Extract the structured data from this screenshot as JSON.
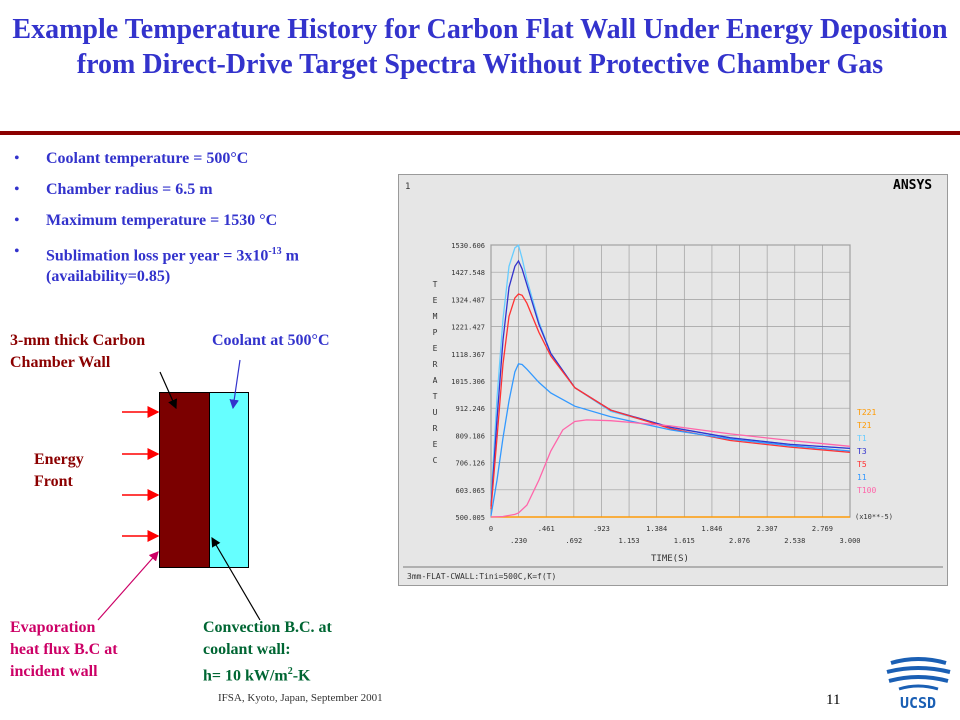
{
  "slide": {
    "title": "Example Temperature History for Carbon Flat Wall Under Energy Deposition from Direct-Drive  Target Spectra Without Protective Chamber Gas",
    "footer": "IFSA, Kyoto, Japan, September 2001",
    "page_number": "11",
    "logo_text": "UCSD",
    "colors": {
      "title": "#3333cc",
      "rule": "#8b0000",
      "wall": "#7b0000",
      "coolant": "#66ffff",
      "arrow": "#ff0000"
    }
  },
  "bullets": [
    {
      "text": "Coolant temperature = 500°C"
    },
    {
      "text": "Chamber radius = 6.5 m"
    },
    {
      "text": "Maximum temperature = 1530 °C"
    },
    {
      "pre": "Sublimation loss per year = 3x10",
      "sup": "-13",
      "post": " m",
      "line2": "(availability=0.85)"
    }
  ],
  "diagram": {
    "wall_label_1": "3-mm thick Carbon",
    "wall_label_2": "Chamber Wall",
    "coolant_label": "Coolant  at 500°C",
    "energy_label_1": "Energy",
    "energy_label_2": "Front",
    "evap_1": "Evaporation",
    "evap_2": "heat flux B.C at",
    "evap_3": "incident wall",
    "conv_1": "Convection B.C. at",
    "conv_2": "coolant wall:",
    "conv_3_pre": "h= 10 kW/m",
    "conv_3_sup": "2",
    "conv_3_post": "-K"
  },
  "chart_data": {
    "type": "line",
    "window_number": "1",
    "brand": "ANSYS",
    "ylabel": "TEMPERATURE C",
    "xlabel": "TIME(S)",
    "x_exponent": "(x10**-5)",
    "caption": "3mm-FLAT-CWALL:Tini=500C,K=f(T)",
    "xlim": [
      0,
      3.0
    ],
    "ylim": [
      500.005,
      1530.606
    ],
    "grid": true,
    "y_ticks": [
      "500.005",
      "603.065",
      "706.126",
      "809.186",
      "912.246",
      "1015.306",
      "1118.367",
      "1221.427",
      "1324.487",
      "1427.548",
      "1530.606"
    ],
    "x_ticks_top": [
      "0",
      ".461",
      ".923",
      "1.384",
      "1.846",
      "2.307",
      "2.769"
    ],
    "x_ticks_bottom": [
      ".230",
      ".692",
      "1.153",
      "1.615",
      "2.076",
      "2.538",
      "3.000"
    ],
    "legend_position": "right",
    "series": [
      {
        "name": "T221",
        "color": "#ff9900",
        "x": [
          0,
          0.1,
          0.2,
          0.3,
          0.5,
          1.0,
          1.5,
          2.0,
          2.5,
          3.0
        ],
        "values": [
          500,
          500,
          500,
          500,
          500,
          500,
          500,
          500,
          500,
          500
        ]
      },
      {
        "name": "T21",
        "color": "#ff9900",
        "x": [
          0,
          0.1,
          0.2,
          0.3,
          0.5,
          1.0,
          1.5,
          2.0,
          2.5,
          3.0
        ],
        "values": [
          500,
          500,
          500,
          500,
          500,
          500,
          500,
          500,
          500,
          500
        ]
      },
      {
        "name": "T1",
        "color": "#66ccff",
        "x": [
          0,
          0.05,
          0.1,
          0.15,
          0.2,
          0.23,
          0.26,
          0.3,
          0.4,
          0.5,
          0.7,
          1.0,
          1.5,
          2.0,
          2.5,
          3.0
        ],
        "values": [
          560,
          950,
          1250,
          1450,
          1520,
          1530,
          1480,
          1400,
          1240,
          1120,
          990,
          900,
          840,
          800,
          775,
          760
        ]
      },
      {
        "name": "T3",
        "color": "#3333cc",
        "x": [
          0,
          0.05,
          0.1,
          0.15,
          0.2,
          0.23,
          0.26,
          0.3,
          0.4,
          0.5,
          0.7,
          1.0,
          1.5,
          2.0,
          2.5,
          3.0
        ],
        "values": [
          540,
          870,
          1170,
          1370,
          1450,
          1470,
          1440,
          1380,
          1230,
          1120,
          990,
          905,
          840,
          800,
          775,
          760
        ]
      },
      {
        "name": "T5",
        "color": "#ff3333",
        "x": [
          0,
          0.05,
          0.1,
          0.15,
          0.2,
          0.23,
          0.26,
          0.3,
          0.4,
          0.5,
          0.7,
          1.0,
          1.5,
          2.0,
          2.5,
          3.0
        ],
        "values": [
          530,
          800,
          1080,
          1260,
          1330,
          1345,
          1340,
          1310,
          1200,
          1110,
          990,
          905,
          835,
          790,
          765,
          745
        ]
      },
      {
        "name": "11",
        "color": "#3399ff",
        "x": [
          0,
          0.05,
          0.1,
          0.15,
          0.2,
          0.23,
          0.26,
          0.3,
          0.4,
          0.5,
          0.7,
          1.0,
          1.5,
          2.0,
          2.5,
          3.0
        ],
        "values": [
          505,
          640,
          800,
          940,
          1050,
          1080,
          1078,
          1060,
          1010,
          970,
          920,
          880,
          830,
          795,
          770,
          750
        ]
      },
      {
        "name": "T100",
        "color": "#ff66aa",
        "x": [
          0,
          0.1,
          0.2,
          0.23,
          0.3,
          0.4,
          0.5,
          0.6,
          0.7,
          0.8,
          1.0,
          1.5,
          2.0,
          2.5,
          3.0
        ],
        "values": [
          500,
          502,
          510,
          515,
          545,
          640,
          750,
          830,
          862,
          868,
          865,
          845,
          815,
          790,
          768
        ]
      }
    ]
  }
}
